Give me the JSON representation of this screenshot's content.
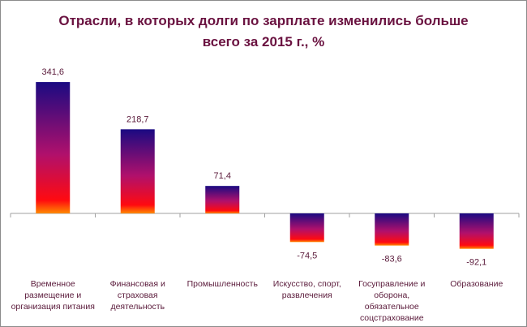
{
  "chart_data": {
    "type": "bar",
    "title_line1": "Отрасли, в которых долги по зарплате изменились больше",
    "title_line2": "всего за 2015 г., %",
    "categories": [
      [
        "Временное",
        "размещение и",
        "организация питания"
      ],
      [
        "Финансовая и",
        "страховая",
        "деятельность"
      ],
      [
        "Промышленность"
      ],
      [
        "Искусство, спорт,",
        "развлечения"
      ],
      [
        "Госуправление и",
        "оборона,",
        "обязательное",
        "соцстрахование"
      ],
      [
        "Образование"
      ]
    ],
    "values": [
      341.6,
      218.7,
      71.4,
      -74.5,
      -83.6,
      -92.1
    ],
    "labels": [
      "341,6",
      "218,7",
      "71,4",
      "-74,5",
      "-83,6",
      "-92,1"
    ],
    "xlabel": "",
    "ylabel": "",
    "legend": "none",
    "grid": false,
    "colors": {
      "top": "#1a0a82",
      "mid": "#b0106c",
      "low": "#ff0a10",
      "bottom": "#ff8a00",
      "axis": "#a0a0a0"
    }
  }
}
